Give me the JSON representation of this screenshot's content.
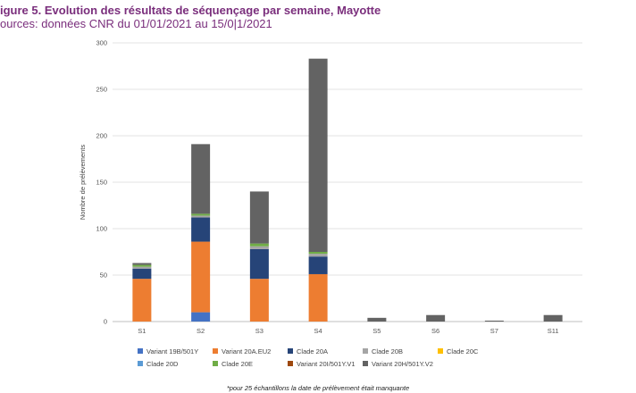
{
  "header": {
    "title": "igure 5. Evolution des résultats de séquençage par semaine, Mayotte",
    "subtitle": "ources: données CNR du 01/01/2021 au 15/0|1/2021"
  },
  "footnote": "*pour 25 échantillons la date de prélèvement était manquante",
  "chart_data": {
    "type": "bar",
    "stacked": true,
    "categories": [
      "S1",
      "S2",
      "S3",
      "S4",
      "S5",
      "S6",
      "S7",
      "S11"
    ],
    "ylabel": "Nombre de prélèvements",
    "ylim": [
      0,
      300
    ],
    "yticks": [
      0,
      50,
      100,
      150,
      200,
      250,
      300
    ],
    "grid": true,
    "legend_position": "bottom",
    "series": [
      {
        "name": "Variant 19B/501Y",
        "color": "#4472c4",
        "values": [
          0,
          10,
          0,
          0,
          0,
          0,
          0,
          0
        ]
      },
      {
        "name": "Variant 20A.EU2",
        "color": "#ed7d31",
        "values": [
          46,
          76,
          46,
          51,
          0,
          0,
          0,
          0
        ]
      },
      {
        "name": "Clade 20A",
        "color": "#264478",
        "values": [
          11,
          26,
          32,
          19,
          0,
          0,
          0,
          0
        ]
      },
      {
        "name": "Clade 20B",
        "color": "#a5a5a5",
        "values": [
          2,
          2,
          3,
          3,
          0,
          0,
          0,
          0
        ]
      },
      {
        "name": "Clade 20C",
        "color": "#ffc000",
        "values": [
          0,
          0,
          0,
          0,
          0,
          0,
          0,
          0
        ]
      },
      {
        "name": "Clade 20D",
        "color": "#5b9bd5",
        "values": [
          0,
          0,
          0,
          0,
          0,
          0,
          0,
          0
        ]
      },
      {
        "name": "Clade 20E",
        "color": "#70ad47",
        "values": [
          2,
          2,
          3,
          2,
          0,
          0,
          0,
          0
        ]
      },
      {
        "name": "Variant 20I/501Y.V1",
        "color": "#9e480e",
        "values": [
          0,
          0,
          0,
          0,
          0,
          0,
          0,
          0
        ]
      },
      {
        "name": "Variant 20H/501Y.V2",
        "color": "#636363",
        "values": [
          2,
          75,
          56,
          208,
          4,
          7,
          1,
          7
        ]
      }
    ]
  }
}
